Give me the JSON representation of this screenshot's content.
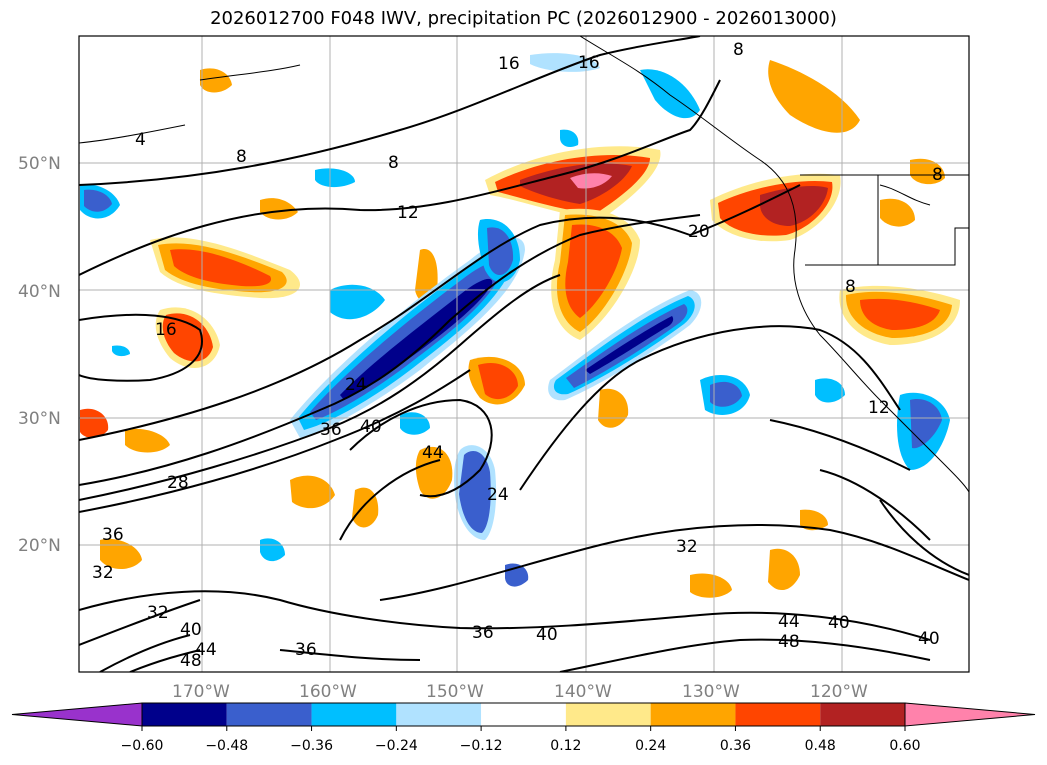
{
  "title": "2026012700 F048 IWV, precipitation PC (2026012900 - 2026013000)",
  "map": {
    "lat_labels": [
      "50°N",
      "40°N",
      "30°N",
      "20°N"
    ],
    "lon_labels": [
      "170°W",
      "160°W",
      "150°W",
      "140°W",
      "130°W",
      "120°W"
    ],
    "contour_labels": [
      "16",
      "16",
      "8",
      "4",
      "8",
      "8",
      "12",
      "20",
      "8",
      "16",
      "8",
      "24",
      "36",
      "40",
      "44",
      "24",
      "28",
      "36",
      "32",
      "32",
      "12",
      "32",
      "40",
      "44",
      "48",
      "36",
      "36",
      "40",
      "44",
      "48",
      "40",
      "40"
    ]
  },
  "colorbar": {
    "tick_labels": [
      "−0.60",
      "−0.48",
      "−0.36",
      "−0.24",
      "−0.12",
      "0.12",
      "0.24",
      "0.36",
      "0.48",
      "0.60"
    ],
    "colors": [
      "#9932cc",
      "#00008b",
      "#3a5fcd",
      "#00bfff",
      "#b0e2ff",
      "#ffffff",
      "#ffe98a",
      "#ffa500",
      "#ff4500",
      "#b22222",
      "#ff82ab"
    ]
  }
}
